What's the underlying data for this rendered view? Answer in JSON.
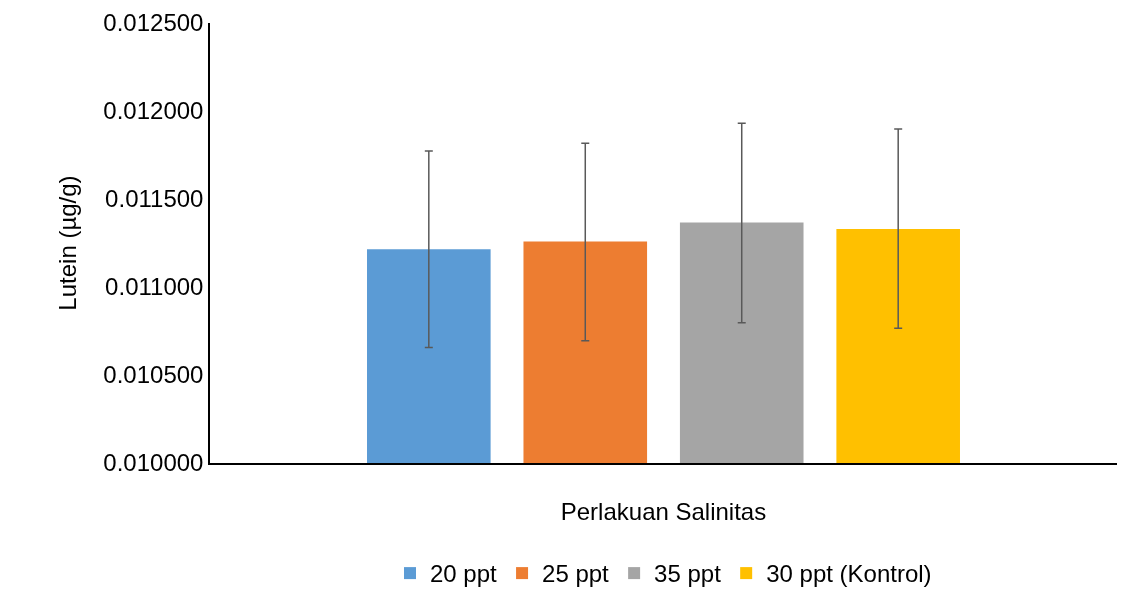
{
  "chart_data": {
    "type": "bar",
    "xlabel": "Perlakuan Salinitas",
    "ylabel": "Lutein (µg/g)",
    "categories": [
      null
    ],
    "series": [
      {
        "name": "20 ppt",
        "color": "#5b9bd5",
        "values": [
          0.011215
        ],
        "errors": [
          [
            0.010656,
            0.011773
          ]
        ]
      },
      {
        "name": "25 ppt",
        "color": "#ed7d31",
        "values": [
          0.011258
        ],
        "errors": [
          [
            0.010694,
            0.011817
          ]
        ]
      },
      {
        "name": "35 ppt",
        "color": "#a5a5a5",
        "values": [
          0.011367
        ],
        "errors": [
          [
            0.010797,
            0.011931
          ]
        ]
      },
      {
        "name": "30 ppt (Kontrol)",
        "color": "#ffc000",
        "values": [
          0.011329
        ],
        "errors": [
          [
            0.010765,
            0.011898
          ]
        ]
      }
    ],
    "ylim": [
      0.01,
      0.0125
    ],
    "yticks": [
      {
        "value": 0.01,
        "label": "0.010000"
      },
      {
        "value": 0.0105,
        "label": "0.010500"
      },
      {
        "value": 0.011,
        "label": "0.011000"
      },
      {
        "value": 0.0115,
        "label": "0.011500"
      },
      {
        "value": 0.012,
        "label": "0.012000"
      },
      {
        "value": 0.0125,
        "label": "0.012500"
      }
    ],
    "grid": false,
    "legend": "bottom"
  }
}
